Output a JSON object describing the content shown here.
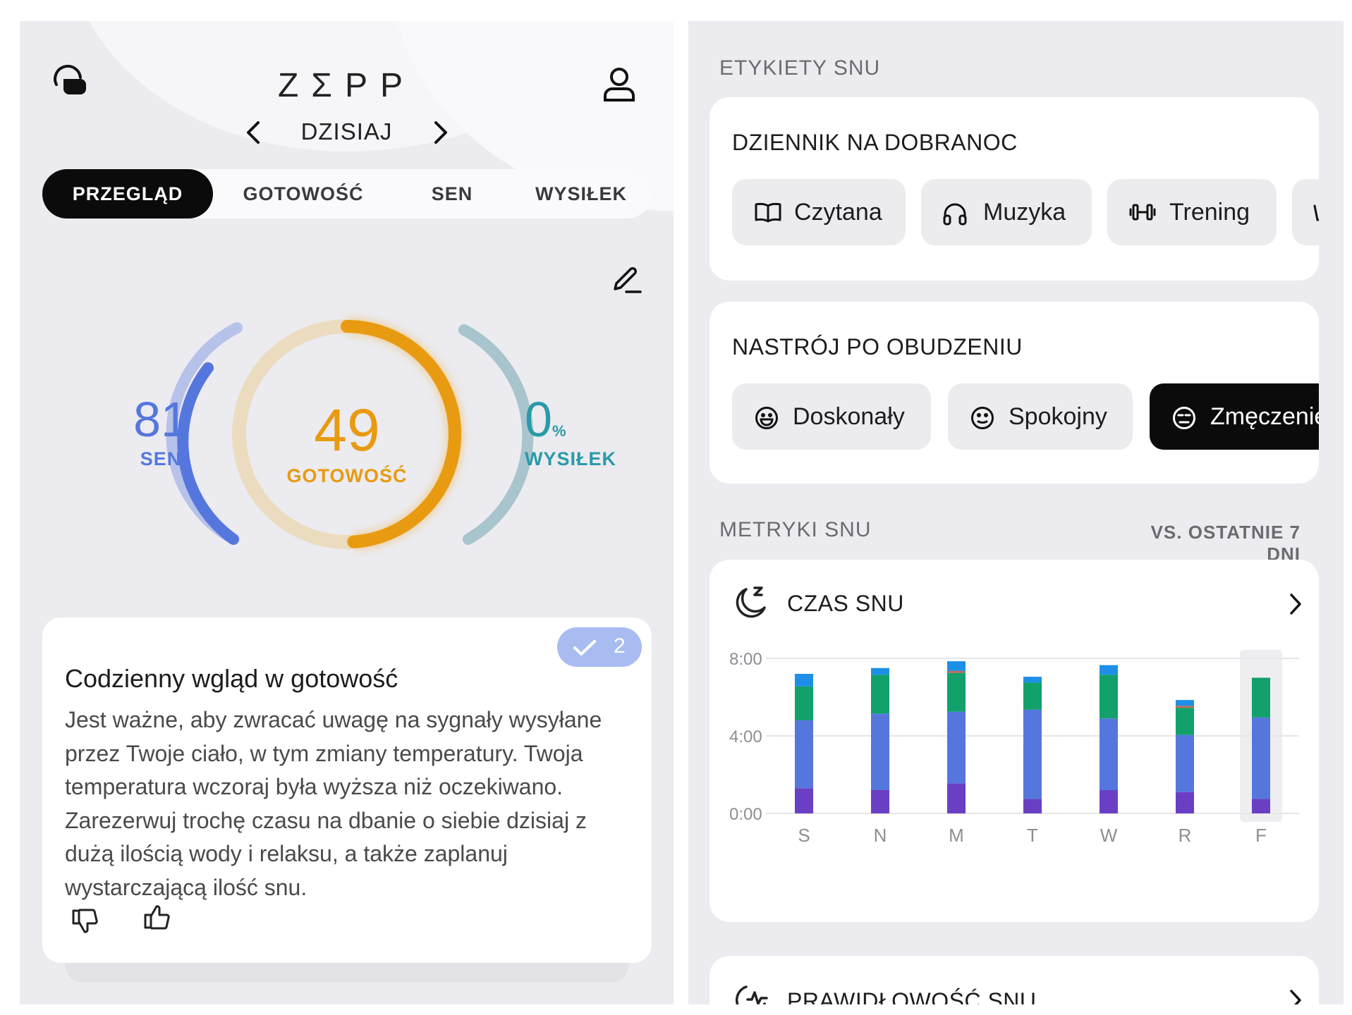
{
  "left": {
    "header": {
      "logo": "ZΣPP",
      "date_label": "DZISIAJ"
    },
    "tabs": [
      {
        "label": "PRZEGLĄD",
        "active": true
      },
      {
        "label": "GOTOWOŚĆ",
        "active": false
      },
      {
        "label": "SEN",
        "active": false
      },
      {
        "label": "WYSIŁEK",
        "active": false
      }
    ],
    "scores": {
      "sleep": {
        "value": "81",
        "label": "SEN",
        "color": "#5577dd"
      },
      "readiness": {
        "value": "49",
        "label": "GOTOWOŚĆ",
        "fraction": 0.49,
        "color": "#e89a10"
      },
      "exertion": {
        "value": "0",
        "unit": "%",
        "label": "WYSIŁEK",
        "color": "#2a9aa8"
      }
    },
    "insight": {
      "title": "Codzienny wgląd w gotowość",
      "badge_count": "2",
      "body": "Jest ważne, aby zwracać uwagę na sygnały wysyłane przez Twoje ciało, w tym zmiany temperatury. Twoja temperatura wczoraj była wyższa niż oczekiwano. Zarezerwuj trochę czasu na dbanie o siebie dzisiaj z dużą ilością wody i relaksu, a także zaplanuj wystarczającą ilość snu."
    }
  },
  "right": {
    "sleep_tags_label": "ETYKIETY SNU",
    "bedtime_journal": {
      "title": "DZIENNIK NA DOBRANOC",
      "chips": [
        {
          "label": "Czytana",
          "icon": "book-icon"
        },
        {
          "label": "Muzyka",
          "icon": "headphones-icon"
        },
        {
          "label": "Trening",
          "icon": "dumbbell-icon"
        }
      ]
    },
    "wake_mood": {
      "title": "NASTRÓJ PO OBUDZENIU",
      "chips": [
        {
          "label": "Doskonały",
          "icon": "grin-face-icon",
          "selected": false
        },
        {
          "label": "Spokojny",
          "icon": "neutral-face-icon",
          "selected": false
        },
        {
          "label": "Zmęczenie",
          "icon": "tired-face-icon",
          "selected": true
        }
      ]
    },
    "sleep_metrics": {
      "label": "METRYKI SNU",
      "compare": "VS. OSTATNIE 7 DNI"
    },
    "sleep_time_card": {
      "title": "CZAS SNU"
    },
    "sleep_regularity_card": {
      "title": "PRAWIDŁOWOŚĆ SNU"
    }
  },
  "chart_data": {
    "type": "bar",
    "stacked": true,
    "categories": [
      "S",
      "N",
      "M",
      "T",
      "W",
      "R",
      "F"
    ],
    "y_tick_labels": [
      "0:00",
      "4:00",
      "8:00"
    ],
    "ylim": [
      0,
      8
    ],
    "highlighted_category": "F",
    "series": [
      {
        "values": [
          1.3,
          1.2,
          1.55,
          0.75,
          1.2,
          1.1,
          0.75
        ],
        "color": "#6a3fc4"
      },
      {
        "values": [
          3.5,
          3.95,
          3.7,
          4.6,
          3.7,
          2.95,
          4.2
        ],
        "color": "#5577dd"
      },
      {
        "values": [
          1.75,
          2.0,
          2.0,
          1.4,
          2.25,
          1.4,
          2.05
        ],
        "color": "#12a06b"
      },
      {
        "values": [
          0.0,
          0.0,
          0.1,
          0.0,
          0.0,
          0.1,
          0.0
        ],
        "color": "#c06a55"
      },
      {
        "values": [
          0.65,
          0.35,
          0.5,
          0.3,
          0.5,
          0.3,
          0.0
        ],
        "color": "#1e8fe6"
      }
    ]
  }
}
